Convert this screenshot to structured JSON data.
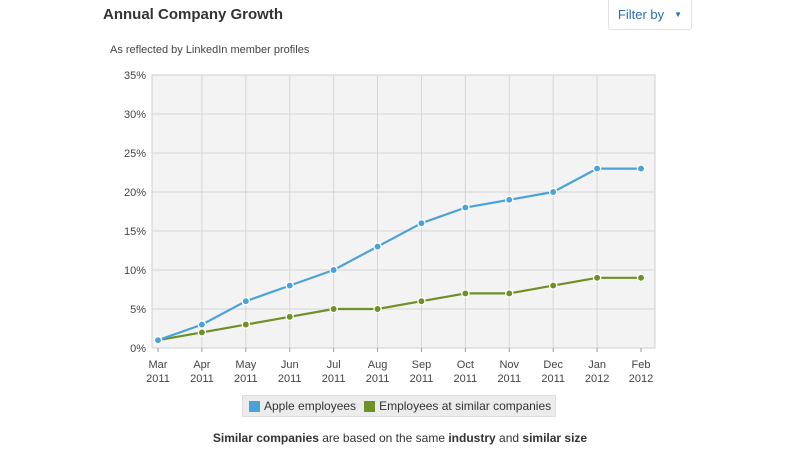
{
  "header": {
    "title": "Annual Company Growth",
    "filter_label": "Filter by"
  },
  "footnote": {
    "p1": "Similar companies",
    "p2": " are based on the same ",
    "p3": "industry",
    "p4": " and ",
    "p5": "similar size"
  },
  "colors": {
    "apple": "#4aa3d8",
    "similar": "#6f8f27",
    "plot_bg": "#f3f3f3",
    "grid": "#d6d6d6"
  },
  "chart_data": {
    "type": "line",
    "title": "Annual Company Growth",
    "subtitle": "As reflected by LinkedIn member profiles",
    "categories": [
      [
        "Mar",
        "2011"
      ],
      [
        "Apr",
        "2011"
      ],
      [
        "May",
        "2011"
      ],
      [
        "Jun",
        "2011"
      ],
      [
        "Jul",
        "2011"
      ],
      [
        "Aug",
        "2011"
      ],
      [
        "Sep",
        "2011"
      ],
      [
        "Oct",
        "2011"
      ],
      [
        "Nov",
        "2011"
      ],
      [
        "Dec",
        "2011"
      ],
      [
        "Jan",
        "2012"
      ],
      [
        "Feb",
        "2012"
      ]
    ],
    "y_ticks": [
      "0%",
      "5%",
      "10%",
      "15%",
      "20%",
      "25%",
      "30%",
      "35%"
    ],
    "ylim": [
      0,
      35
    ],
    "series": [
      {
        "name": "Apple employees",
        "color": "#4aa3d8",
        "values": [
          1,
          3,
          6,
          8,
          10,
          13,
          16,
          18,
          19,
          20,
          23,
          23
        ]
      },
      {
        "name": "Employees at similar companies",
        "color": "#6f8f27",
        "values": [
          1,
          2,
          3,
          4,
          5,
          5,
          6,
          7,
          7,
          8,
          9,
          9
        ]
      }
    ]
  }
}
